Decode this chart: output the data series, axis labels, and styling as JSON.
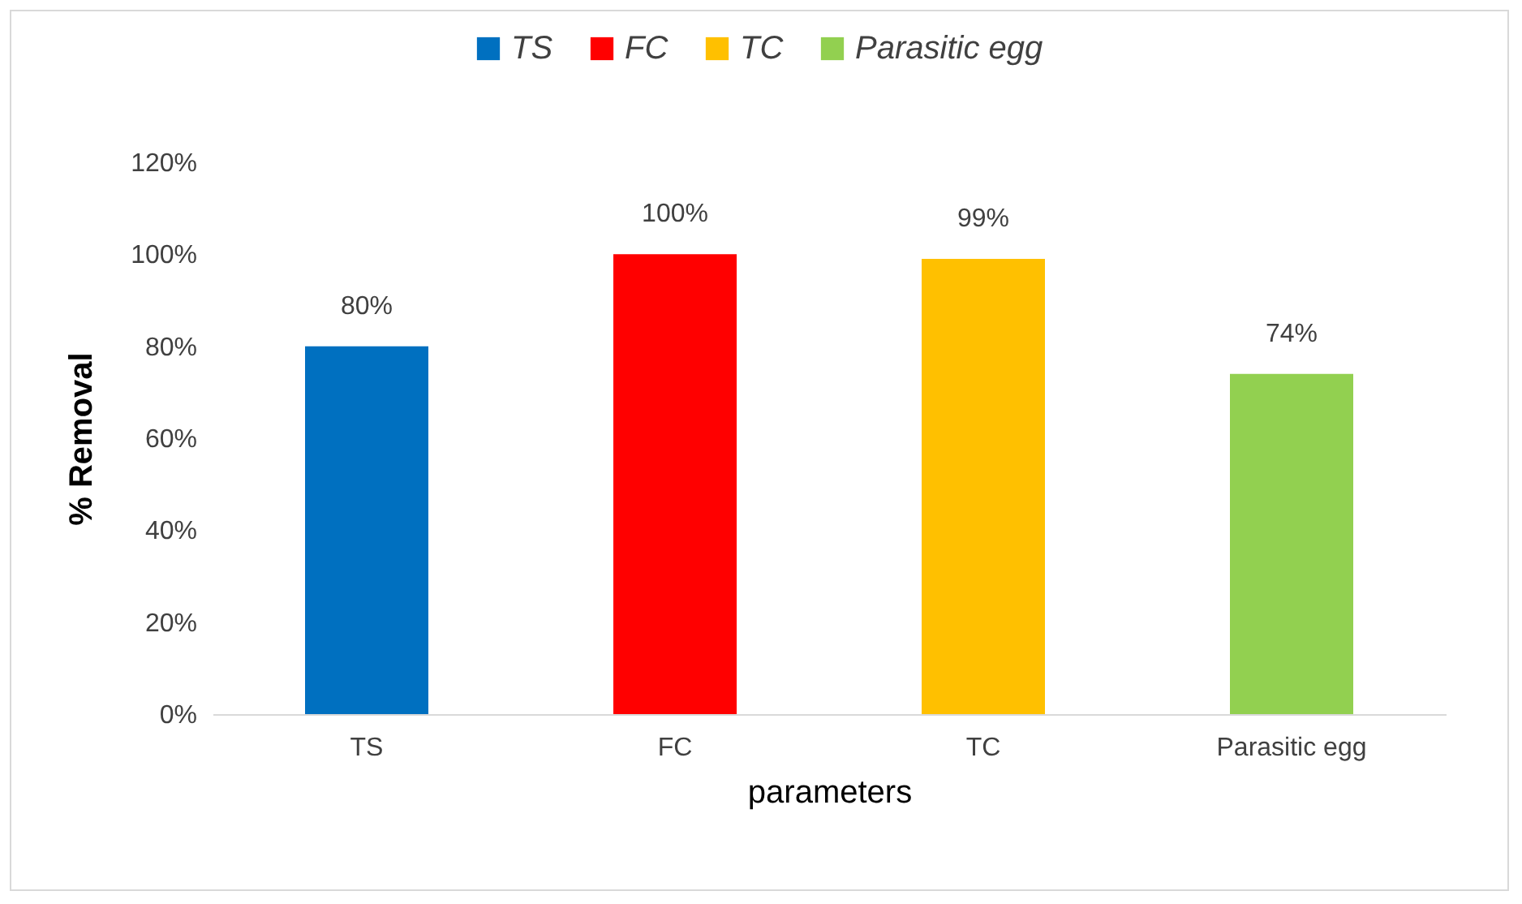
{
  "chart_data": {
    "type": "bar",
    "xlabel": "parameters",
    "ylabel": "% Removal",
    "categories": [
      "TS",
      "FC",
      "TC",
      "Parasitic  egg"
    ],
    "series": [
      {
        "name": "TS",
        "color": "#0070c0",
        "values": [
          80,
          null,
          null,
          null
        ],
        "value_labels": [
          "80%",
          null,
          null,
          null
        ]
      },
      {
        "name": "FC",
        "color": "#ff0000",
        "values": [
          null,
          100,
          null,
          null
        ],
        "value_labels": [
          null,
          "100%",
          null,
          null
        ]
      },
      {
        "name": "TC",
        "color": "#ffc000",
        "values": [
          null,
          null,
          99,
          null
        ],
        "value_labels": [
          null,
          null,
          "99%",
          null
        ]
      },
      {
        "name": "Parasitic  egg",
        "color": "#92d050",
        "values": [
          null,
          null,
          null,
          74
        ],
        "value_labels": [
          null,
          null,
          null,
          "74%"
        ]
      }
    ],
    "ylim": [
      0,
      120
    ],
    "yticks": [
      {
        "value": 0,
        "label": "0%"
      },
      {
        "value": 20,
        "label": "20%"
      },
      {
        "value": 40,
        "label": "40%"
      },
      {
        "value": 60,
        "label": "60%"
      },
      {
        "value": 80,
        "label": "80%"
      },
      {
        "value": 100,
        "label": "100%"
      },
      {
        "value": 120,
        "label": "120%"
      }
    ],
    "legend": "top",
    "grid": false
  }
}
